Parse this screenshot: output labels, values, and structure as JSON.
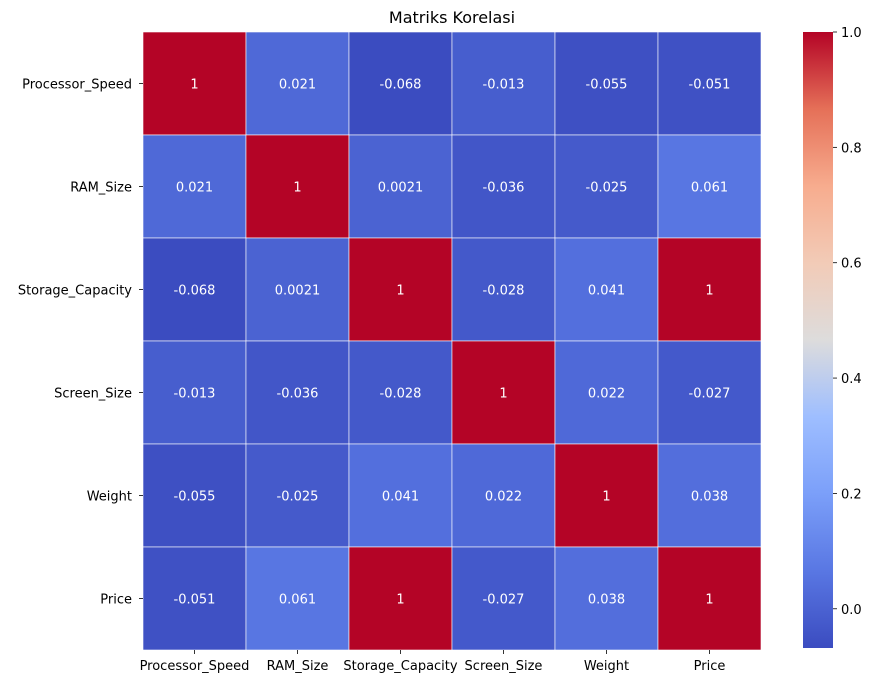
{
  "chart_data": {
    "type": "heatmap",
    "title": "Matriks Korelasi",
    "rows": [
      "Processor_Speed",
      "RAM_Size",
      "Storage_Capacity",
      "Screen_Size",
      "Weight",
      "Price"
    ],
    "columns": [
      "Processor_Speed",
      "RAM_Size",
      "Storage_Capacity",
      "Screen_Size",
      "Weight",
      "Price"
    ],
    "values": [
      [
        1,
        0.021,
        -0.068,
        -0.013,
        -0.055,
        -0.051
      ],
      [
        0.021,
        1,
        0.0021,
        -0.036,
        -0.025,
        0.061
      ],
      [
        -0.068,
        0.0021,
        1,
        -0.028,
        0.041,
        1
      ],
      [
        -0.013,
        -0.036,
        -0.028,
        1,
        0.022,
        -0.027
      ],
      [
        -0.055,
        -0.025,
        0.041,
        0.022,
        1,
        0.038
      ],
      [
        -0.051,
        0.061,
        1,
        -0.027,
        0.038,
        1
      ]
    ],
    "annotations": [
      [
        "1",
        "0.021",
        "-0.068",
        "-0.013",
        "-0.055",
        "-0.051"
      ],
      [
        "0.021",
        "1",
        "0.0021",
        "-0.036",
        "-0.025",
        "0.061"
      ],
      [
        "-0.068",
        "0.0021",
        "1",
        "-0.028",
        "0.041",
        "1"
      ],
      [
        "-0.013",
        "-0.036",
        "-0.028",
        "1",
        "0.022",
        "-0.027"
      ],
      [
        "-0.055",
        "-0.025",
        "0.041",
        "0.022",
        "1",
        "0.038"
      ],
      [
        "-0.051",
        "0.061",
        "1",
        "-0.027",
        "0.038",
        "1"
      ]
    ],
    "colormap": "coolwarm",
    "vmin": -0.068,
    "vmax": 1,
    "colorbar_ticks": [
      "0.0",
      "0.2",
      "0.4",
      "0.6",
      "0.8",
      "1.0"
    ],
    "colorbar_tick_values": [
      0.0,
      0.2,
      0.4,
      0.6,
      0.8,
      1.0
    ],
    "cell_border_color": "#ffffff",
    "annotation_color": "#ffffff"
  }
}
